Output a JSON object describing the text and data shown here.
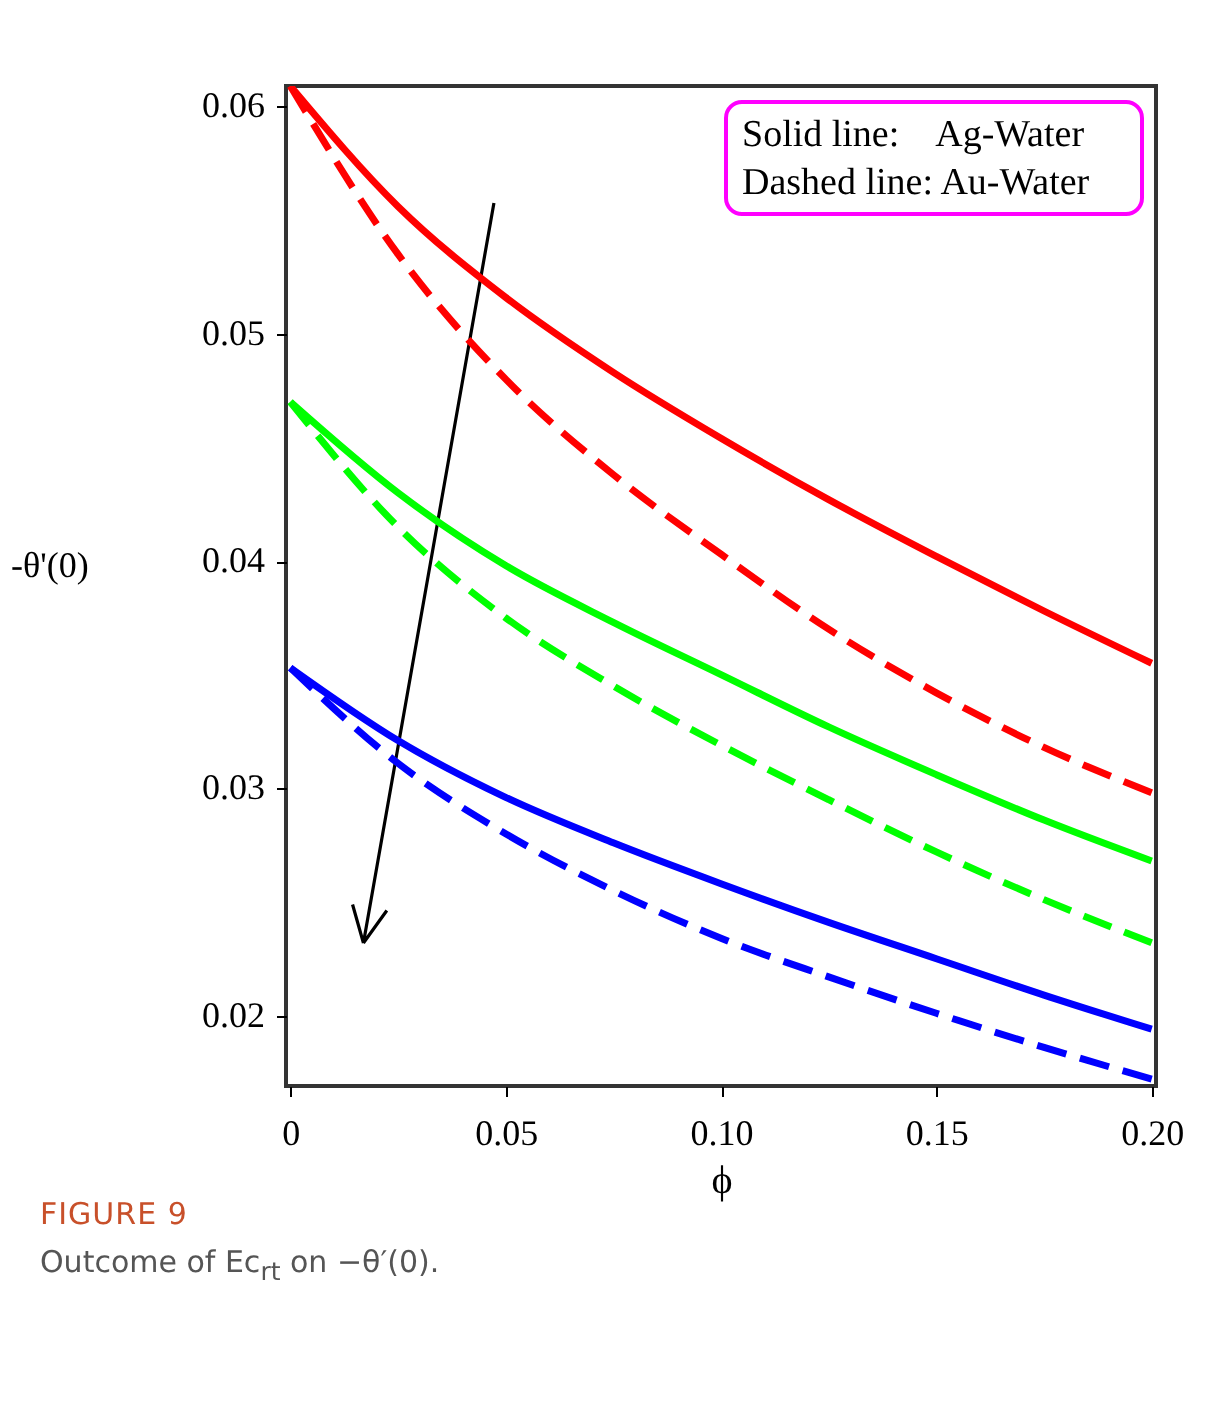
{
  "chart_data": {
    "type": "line",
    "xlabel": "ϕ",
    "ylabel": "-θ'(0)",
    "x": [
      0,
      0.025,
      0.05,
      0.075,
      0.1,
      0.125,
      0.15,
      0.175,
      0.2
    ],
    "series": [
      {
        "color": "#ff0000",
        "line_style": "solid",
        "values": [
          0.0609,
          0.0556,
          0.0516,
          0.0483,
          0.0454,
          0.0427,
          0.0402,
          0.0378,
          0.0355
        ]
      },
      {
        "color": "#ff0000",
        "line_style": "dashed",
        "values": [
          0.0609,
          0.0535,
          0.048,
          0.0438,
          0.0403,
          0.037,
          0.0342,
          0.0318,
          0.0298
        ]
      },
      {
        "color": "#00ff00",
        "line_style": "solid",
        "values": [
          0.047,
          0.043,
          0.0398,
          0.0373,
          0.035,
          0.0327,
          0.0306,
          0.0286,
          0.0268
        ]
      },
      {
        "color": "#00ff00",
        "line_style": "dashed",
        "values": [
          0.047,
          0.0415,
          0.0375,
          0.0345,
          0.0319,
          0.0295,
          0.0272,
          0.0251,
          0.0232
        ]
      },
      {
        "color": "#0000ff",
        "line_style": "solid",
        "values": [
          0.0353,
          0.0321,
          0.0296,
          0.0276,
          0.0258,
          0.0241,
          0.0225,
          0.0209,
          0.0194
        ]
      },
      {
        "color": "#0000ff",
        "line_style": "dashed",
        "values": [
          0.0353,
          0.0311,
          0.028,
          0.0255,
          0.0234,
          0.0217,
          0.0201,
          0.0186,
          0.0172
        ]
      }
    ],
    "xlim": [
      -0.001,
      0.201
    ],
    "ylim": [
      0.0169,
      0.0609
    ],
    "xticks": [
      0,
      0.05,
      {
        "value": 0.1,
        "label": "0.10"
      },
      0.15,
      {
        "value": 0.2,
        "label": "0.20"
      }
    ],
    "yticks": [
      0.02,
      0.03,
      0.04,
      0.05,
      0.06
    ],
    "grid": false,
    "marker": "none",
    "annotations": [
      "Solid line:    Ag-Water",
      "Dashed line: Au-Water",
      "FIGURE 9",
      "Outcome of Ec$_{rt}$ on −θ′(0)."
    ]
  }
}
